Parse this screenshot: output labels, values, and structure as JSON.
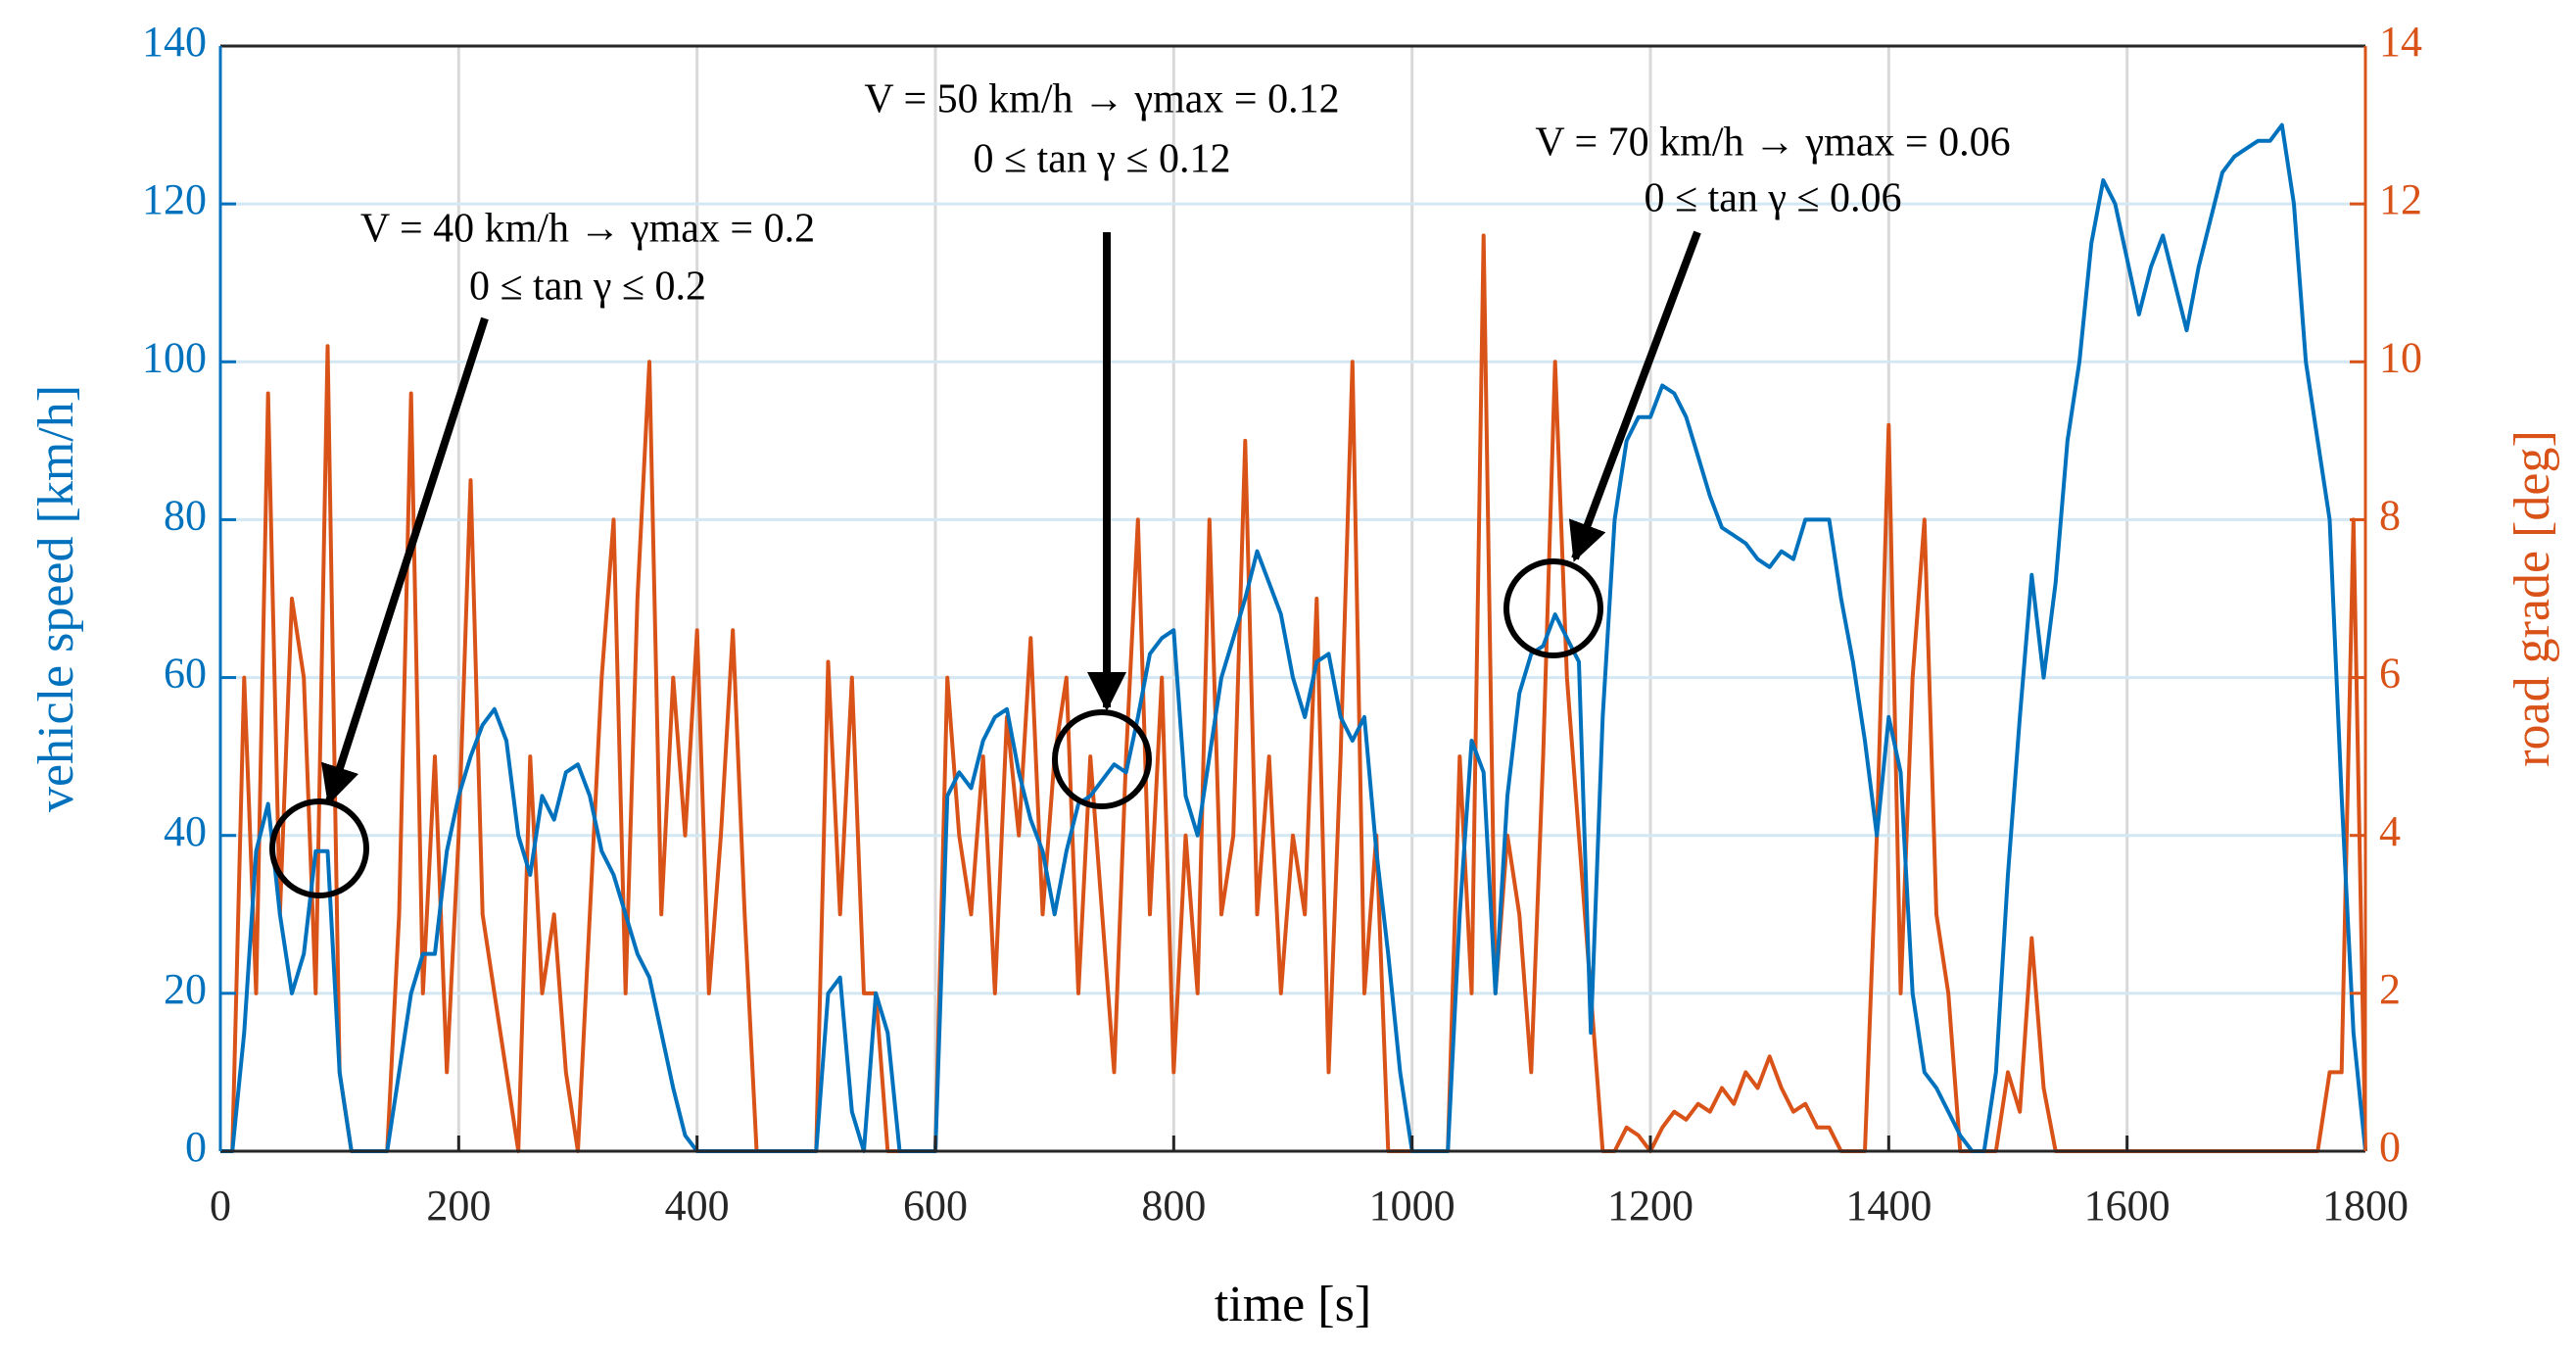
{
  "chart_data": {
    "type": "line",
    "xlabel": "time [s]",
    "ylabel": "vehicle speed [km/h]",
    "y2label": "road grade [deg]",
    "xlim": [
      0,
      1800
    ],
    "xticks": [
      0,
      200,
      400,
      600,
      800,
      1000,
      1200,
      1400,
      1600,
      1800
    ],
    "ylim": [
      0,
      140
    ],
    "yticks": [
      0,
      20,
      40,
      60,
      80,
      100,
      120,
      140
    ],
    "y2lim": [
      0,
      14
    ],
    "y2ticks": [
      0,
      2,
      4,
      6,
      8,
      10,
      12,
      14
    ],
    "grid": true,
    "x": [
      0,
      10,
      20,
      30,
      40,
      50,
      60,
      70,
      80,
      90,
      100,
      110,
      120,
      130,
      140,
      150,
      160,
      170,
      180,
      190,
      200,
      210,
      220,
      230,
      240,
      250,
      260,
      270,
      280,
      290,
      300,
      310,
      320,
      330,
      340,
      350,
      360,
      370,
      380,
      390,
      400,
      410,
      420,
      430,
      440,
      450,
      460,
      470,
      480,
      490,
      500,
      510,
      520,
      530,
      540,
      550,
      560,
      570,
      580,
      590,
      600,
      610,
      620,
      630,
      640,
      650,
      660,
      670,
      680,
      690,
      700,
      710,
      720,
      730,
      740,
      750,
      760,
      770,
      780,
      790,
      800,
      810,
      820,
      830,
      840,
      850,
      860,
      870,
      880,
      890,
      900,
      910,
      920,
      930,
      940,
      950,
      960,
      970,
      980,
      990,
      1000,
      1010,
      1020,
      1030,
      1040,
      1050,
      1060,
      1070,
      1080,
      1090,
      1100,
      1110,
      1120,
      1130,
      1140,
      1150,
      1160,
      1170,
      1180,
      1190,
      1200,
      1210,
      1220,
      1230,
      1240,
      1250,
      1260,
      1270,
      1280,
      1290,
      1300,
      1310,
      1320,
      1330,
      1340,
      1350,
      1360,
      1370,
      1380,
      1390,
      1400,
      1410,
      1420,
      1430,
      1440,
      1450,
      1460,
      1470,
      1480,
      1490,
      1500,
      1510,
      1520,
      1530,
      1540,
      1550,
      1560,
      1570,
      1580,
      1590,
      1600,
      1610,
      1620,
      1630,
      1640,
      1650,
      1660,
      1670,
      1680,
      1690,
      1700,
      1710,
      1720,
      1730,
      1740,
      1750,
      1760,
      1770,
      1780,
      1790,
      1800
    ],
    "series": [
      {
        "color": "#0072bd",
        "values": [
          0,
          0,
          15,
          38,
          44,
          30,
          20,
          25,
          38,
          38,
          10,
          0,
          0,
          0,
          0,
          10,
          20,
          25,
          25,
          38,
          45,
          50,
          54,
          56,
          52,
          40,
          35,
          45,
          42,
          48,
          49,
          45,
          38,
          35,
          30,
          25,
          22,
          15,
          8,
          2,
          0,
          0,
          0,
          0,
          0,
          0,
          0,
          0,
          0,
          0,
          0,
          20,
          22,
          5,
          0,
          20,
          15,
          0,
          0,
          0,
          0,
          45,
          48,
          46,
          52,
          55,
          56,
          48,
          42,
          38,
          30,
          38,
          44,
          45,
          47,
          49,
          48,
          55,
          63,
          65,
          66,
          45,
          40,
          50,
          60,
          65,
          70,
          76,
          72,
          68,
          60,
          55,
          62,
          63,
          55,
          52,
          55,
          38,
          25,
          10,
          0,
          0,
          0,
          0,
          30,
          52,
          48,
          20,
          45,
          58,
          63,
          64,
          68,
          65,
          62,
          15,
          55,
          80,
          90,
          93,
          93,
          97,
          96,
          93,
          88,
          83,
          79,
          78,
          77,
          75,
          74,
          76,
          75,
          80,
          80,
          80,
          70,
          62,
          52,
          40,
          55,
          48,
          20,
          10,
          8,
          5,
          2,
          0,
          0,
          10,
          35,
          55,
          73,
          60,
          72,
          90,
          100,
          115,
          123,
          120,
          113,
          106,
          112,
          116,
          110,
          104,
          112,
          118,
          124,
          126,
          127,
          128,
          128,
          130,
          120,
          100,
          90,
          80,
          45,
          15,
          0
        ]
      },
      {
        "color": "#d95319",
        "axis": "y2",
        "values": [
          0,
          0,
          6,
          2,
          9.6,
          3,
          7,
          6,
          2,
          10.2,
          1,
          0,
          0,
          0,
          0,
          3,
          9.6,
          2,
          5,
          1,
          4,
          8.5,
          3,
          2,
          1,
          0,
          5,
          2,
          3,
          1,
          0,
          3,
          6,
          8,
          2,
          7,
          10,
          3,
          6,
          4,
          6.6,
          2,
          4,
          6.6,
          3,
          0,
          0,
          0,
          0,
          0,
          0,
          6.2,
          3,
          6,
          2,
          2,
          0,
          0,
          0,
          0,
          0,
          6,
          4,
          3,
          5,
          2,
          5.5,
          4,
          6.5,
          3,
          5,
          6,
          2,
          5,
          3,
          1,
          5,
          8,
          3,
          6,
          1,
          4,
          2,
          8,
          3,
          4,
          9,
          3,
          5,
          2,
          4,
          3,
          7,
          1,
          5,
          10,
          2,
          4,
          0,
          0,
          0,
          0,
          0,
          0,
          5,
          2,
          11.6,
          2,
          4,
          3,
          1,
          5,
          10,
          6,
          4,
          2,
          0,
          0,
          0.3,
          0.2,
          0,
          0.3,
          0.5,
          0.4,
          0.6,
          0.5,
          0.8,
          0.6,
          1,
          0.8,
          1.2,
          0.8,
          0.5,
          0.6,
          0.3,
          0.3,
          0,
          0,
          0,
          4,
          9.2,
          2,
          6,
          8,
          3,
          2,
          0,
          0,
          0,
          0,
          1,
          0.5,
          2.7,
          0.8,
          0,
          0,
          0,
          0,
          0,
          0,
          0,
          0,
          0,
          0,
          0,
          0,
          0,
          0,
          0,
          0,
          0,
          0,
          0,
          0,
          0,
          0,
          0,
          1,
          1,
          8,
          0
        ]
      }
    ],
    "annotations": [
      [
        "V = 40 km/h → γmax = 0.2",
        "0 ≤ tan γ ≤ 0.2"
      ],
      [
        "V = 50 km/h → γmax = 0.12",
        "0 ≤ tan γ ≤ 0.12"
      ],
      [
        "V = 70 km/h → γmax = 0.06",
        "0 ≤ tan γ ≤ 0.06"
      ]
    ]
  }
}
